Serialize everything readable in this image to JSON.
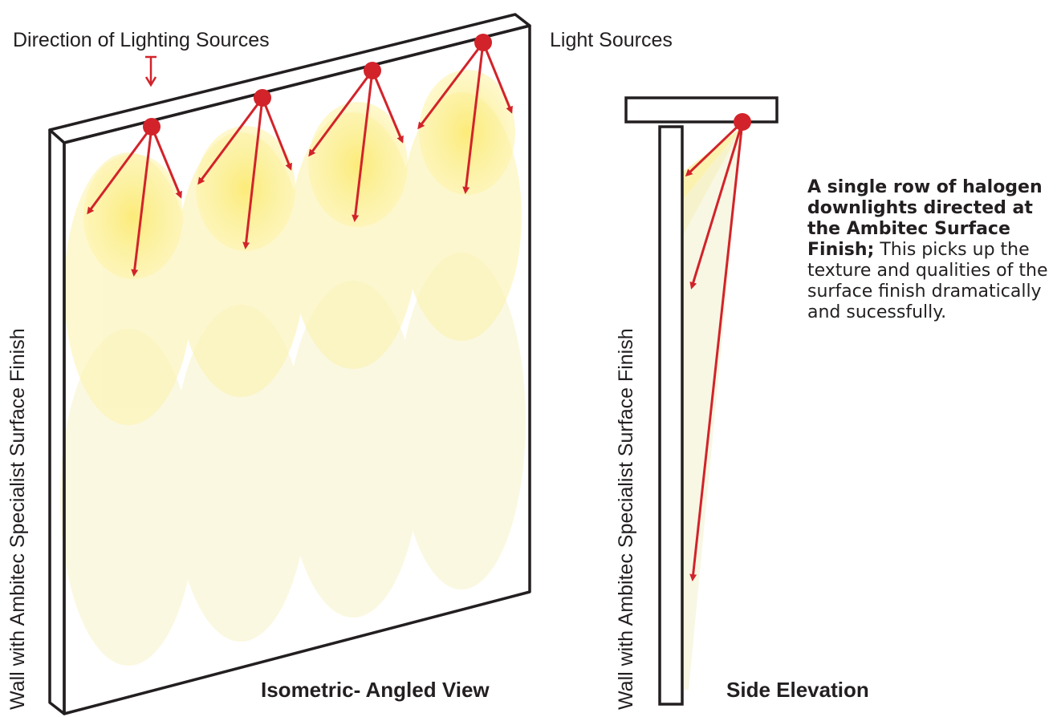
{
  "labels": {
    "direction": "Direction of Lighting Sources",
    "light_sources": "Light Sources",
    "wall_left": "Wall with Ambitec Specialist Surface Finish",
    "wall_right": "Wall with Ambitec Specialist Surface Finish",
    "caption_iso": "Isometric- Angled View",
    "caption_side": "Side Elevation"
  },
  "description": {
    "bold": "A single row of halogen downlights directed at the Ambitec Surface Finish;",
    "normal": " This picks up the texture and qualities of the surface finish dramatically and sucessfully."
  },
  "colors": {
    "arrow": "#d2232a",
    "light_dot": "#d2232a",
    "glow_core": "#fdf08a",
    "glow_outer": "#fbf6c7",
    "outline": "#231f20"
  },
  "icons": {
    "light_source": "red-dot-icon",
    "direction_marker": "down-arrow-icon"
  }
}
